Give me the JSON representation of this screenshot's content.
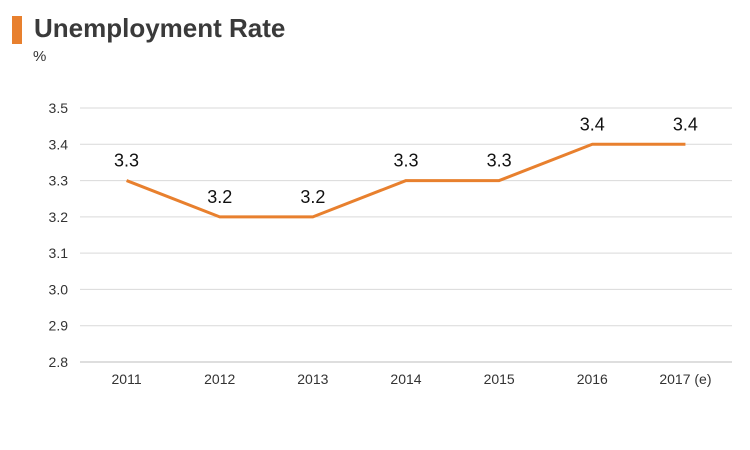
{
  "chart_data": {
    "type": "line",
    "title": "Unemployment Rate",
    "ylabel": "%",
    "categories": [
      "2011",
      "2012",
      "2013",
      "2014",
      "2015",
      "2016",
      "2017 (e)"
    ],
    "series": [
      {
        "values": [
          3.3,
          3.2,
          3.2,
          3.3,
          3.3,
          3.4,
          3.4
        ],
        "color": "#e8802e"
      }
    ],
    "ylim": [
      2.8,
      3.5
    ],
    "yticks": [
      "2.8",
      "2.9",
      "3.0",
      "3.1",
      "3.2",
      "3.3",
      "3.4",
      "3.5"
    ],
    "grid": true,
    "data_labels": true
  },
  "colors": {
    "accent": "#e8802e",
    "grid": "#d9d9d9",
    "text": "#333333"
  }
}
